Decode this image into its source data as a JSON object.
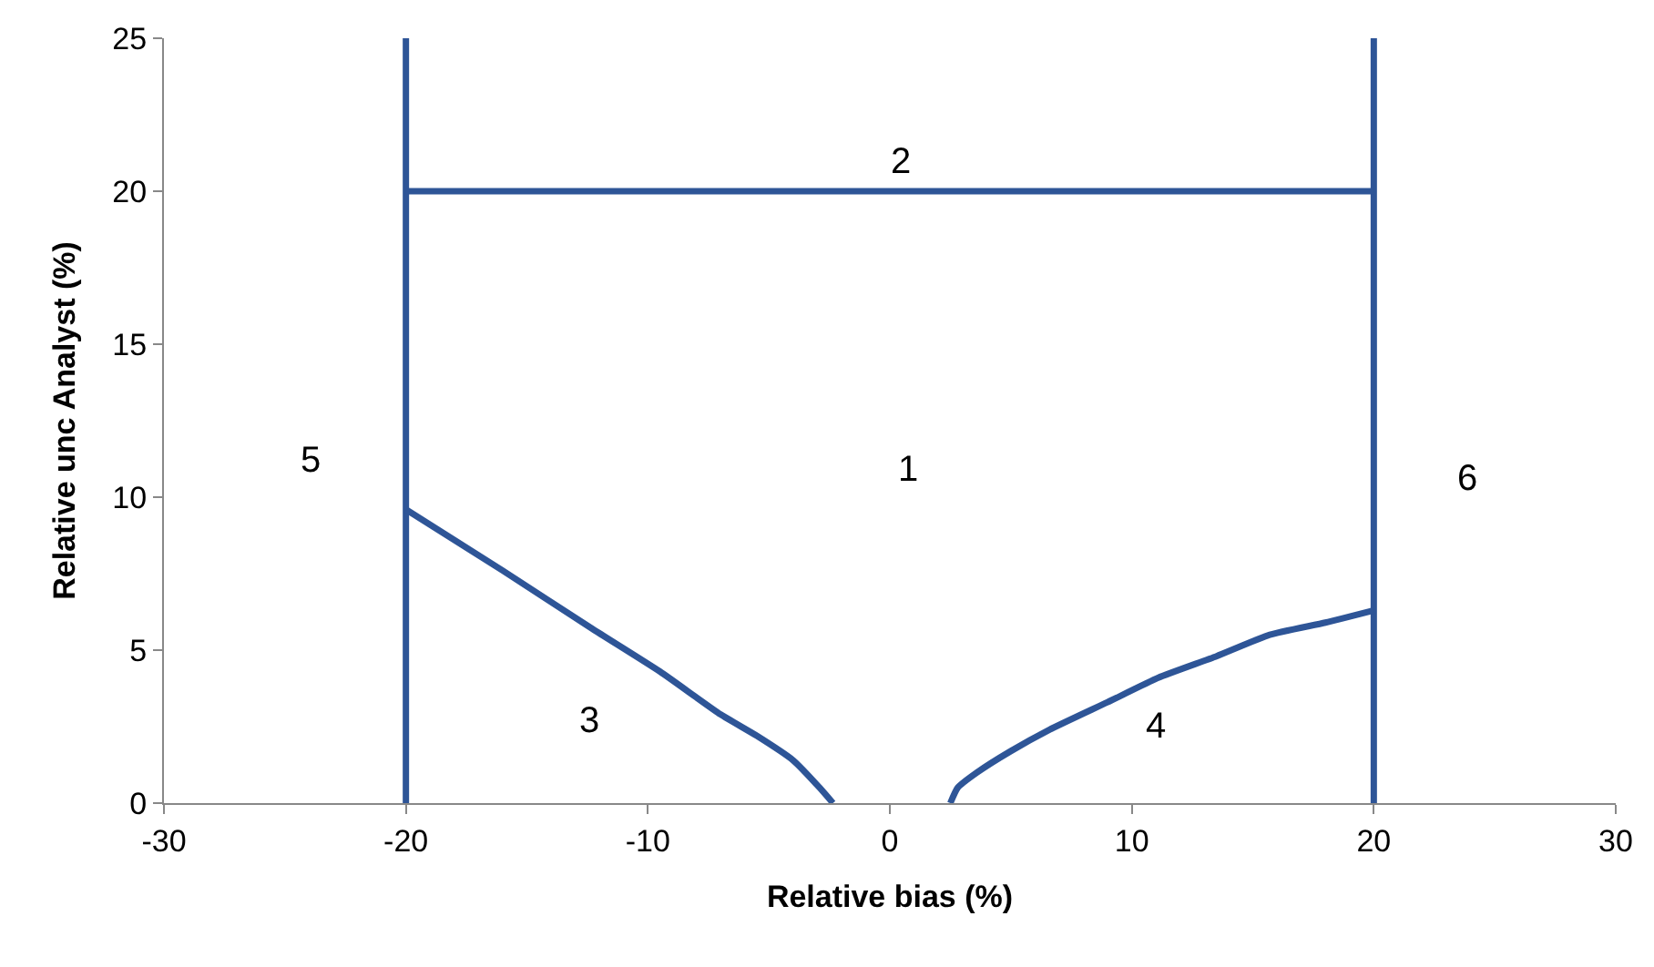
{
  "chart_data": {
    "type": "line",
    "xlabel": "Relative bias (%)",
    "ylabel": "Relative unc Analyst (%)",
    "xlim": [
      -30,
      30
    ],
    "xticks": [
      -30,
      -20,
      -10,
      0,
      10,
      20,
      30
    ],
    "ylim": [
      0,
      25
    ],
    "yticks": [
      0,
      5,
      10,
      15,
      20,
      25
    ],
    "series": [
      {
        "color": "#2e5597",
        "x": [
          -20,
          -20
        ],
        "values": [
          0,
          25
        ]
      },
      {
        "color": "#2e5597",
        "x": [
          20,
          20
        ],
        "values": [
          0,
          25
        ]
      },
      {
        "color": "#2e5597",
        "x": [
          -20,
          20
        ],
        "values": [
          20,
          20
        ]
      },
      {
        "color": "#2e5597",
        "x": [
          -20,
          -16,
          -12.3,
          -9.5,
          -7,
          -5.5,
          -4,
          -2.9,
          -2.35
        ],
        "values": [
          9.6,
          7.6,
          5.7,
          4.3,
          2.9,
          2.2,
          1.4,
          0.5,
          0
        ]
      },
      {
        "color": "#2e5597",
        "x": [
          2.5,
          2.8,
          3.6,
          5,
          6.6,
          9,
          11.1,
          13.5,
          15.7,
          18,
          20
        ],
        "values": [
          0,
          0.5,
          1.0,
          1.7,
          2.4,
          3.3,
          4.1,
          4.8,
          5.5,
          5.9,
          6.3
        ]
      }
    ],
    "annotations": [
      "2",
      "1",
      "5",
      "6",
      "3",
      "4"
    ]
  }
}
